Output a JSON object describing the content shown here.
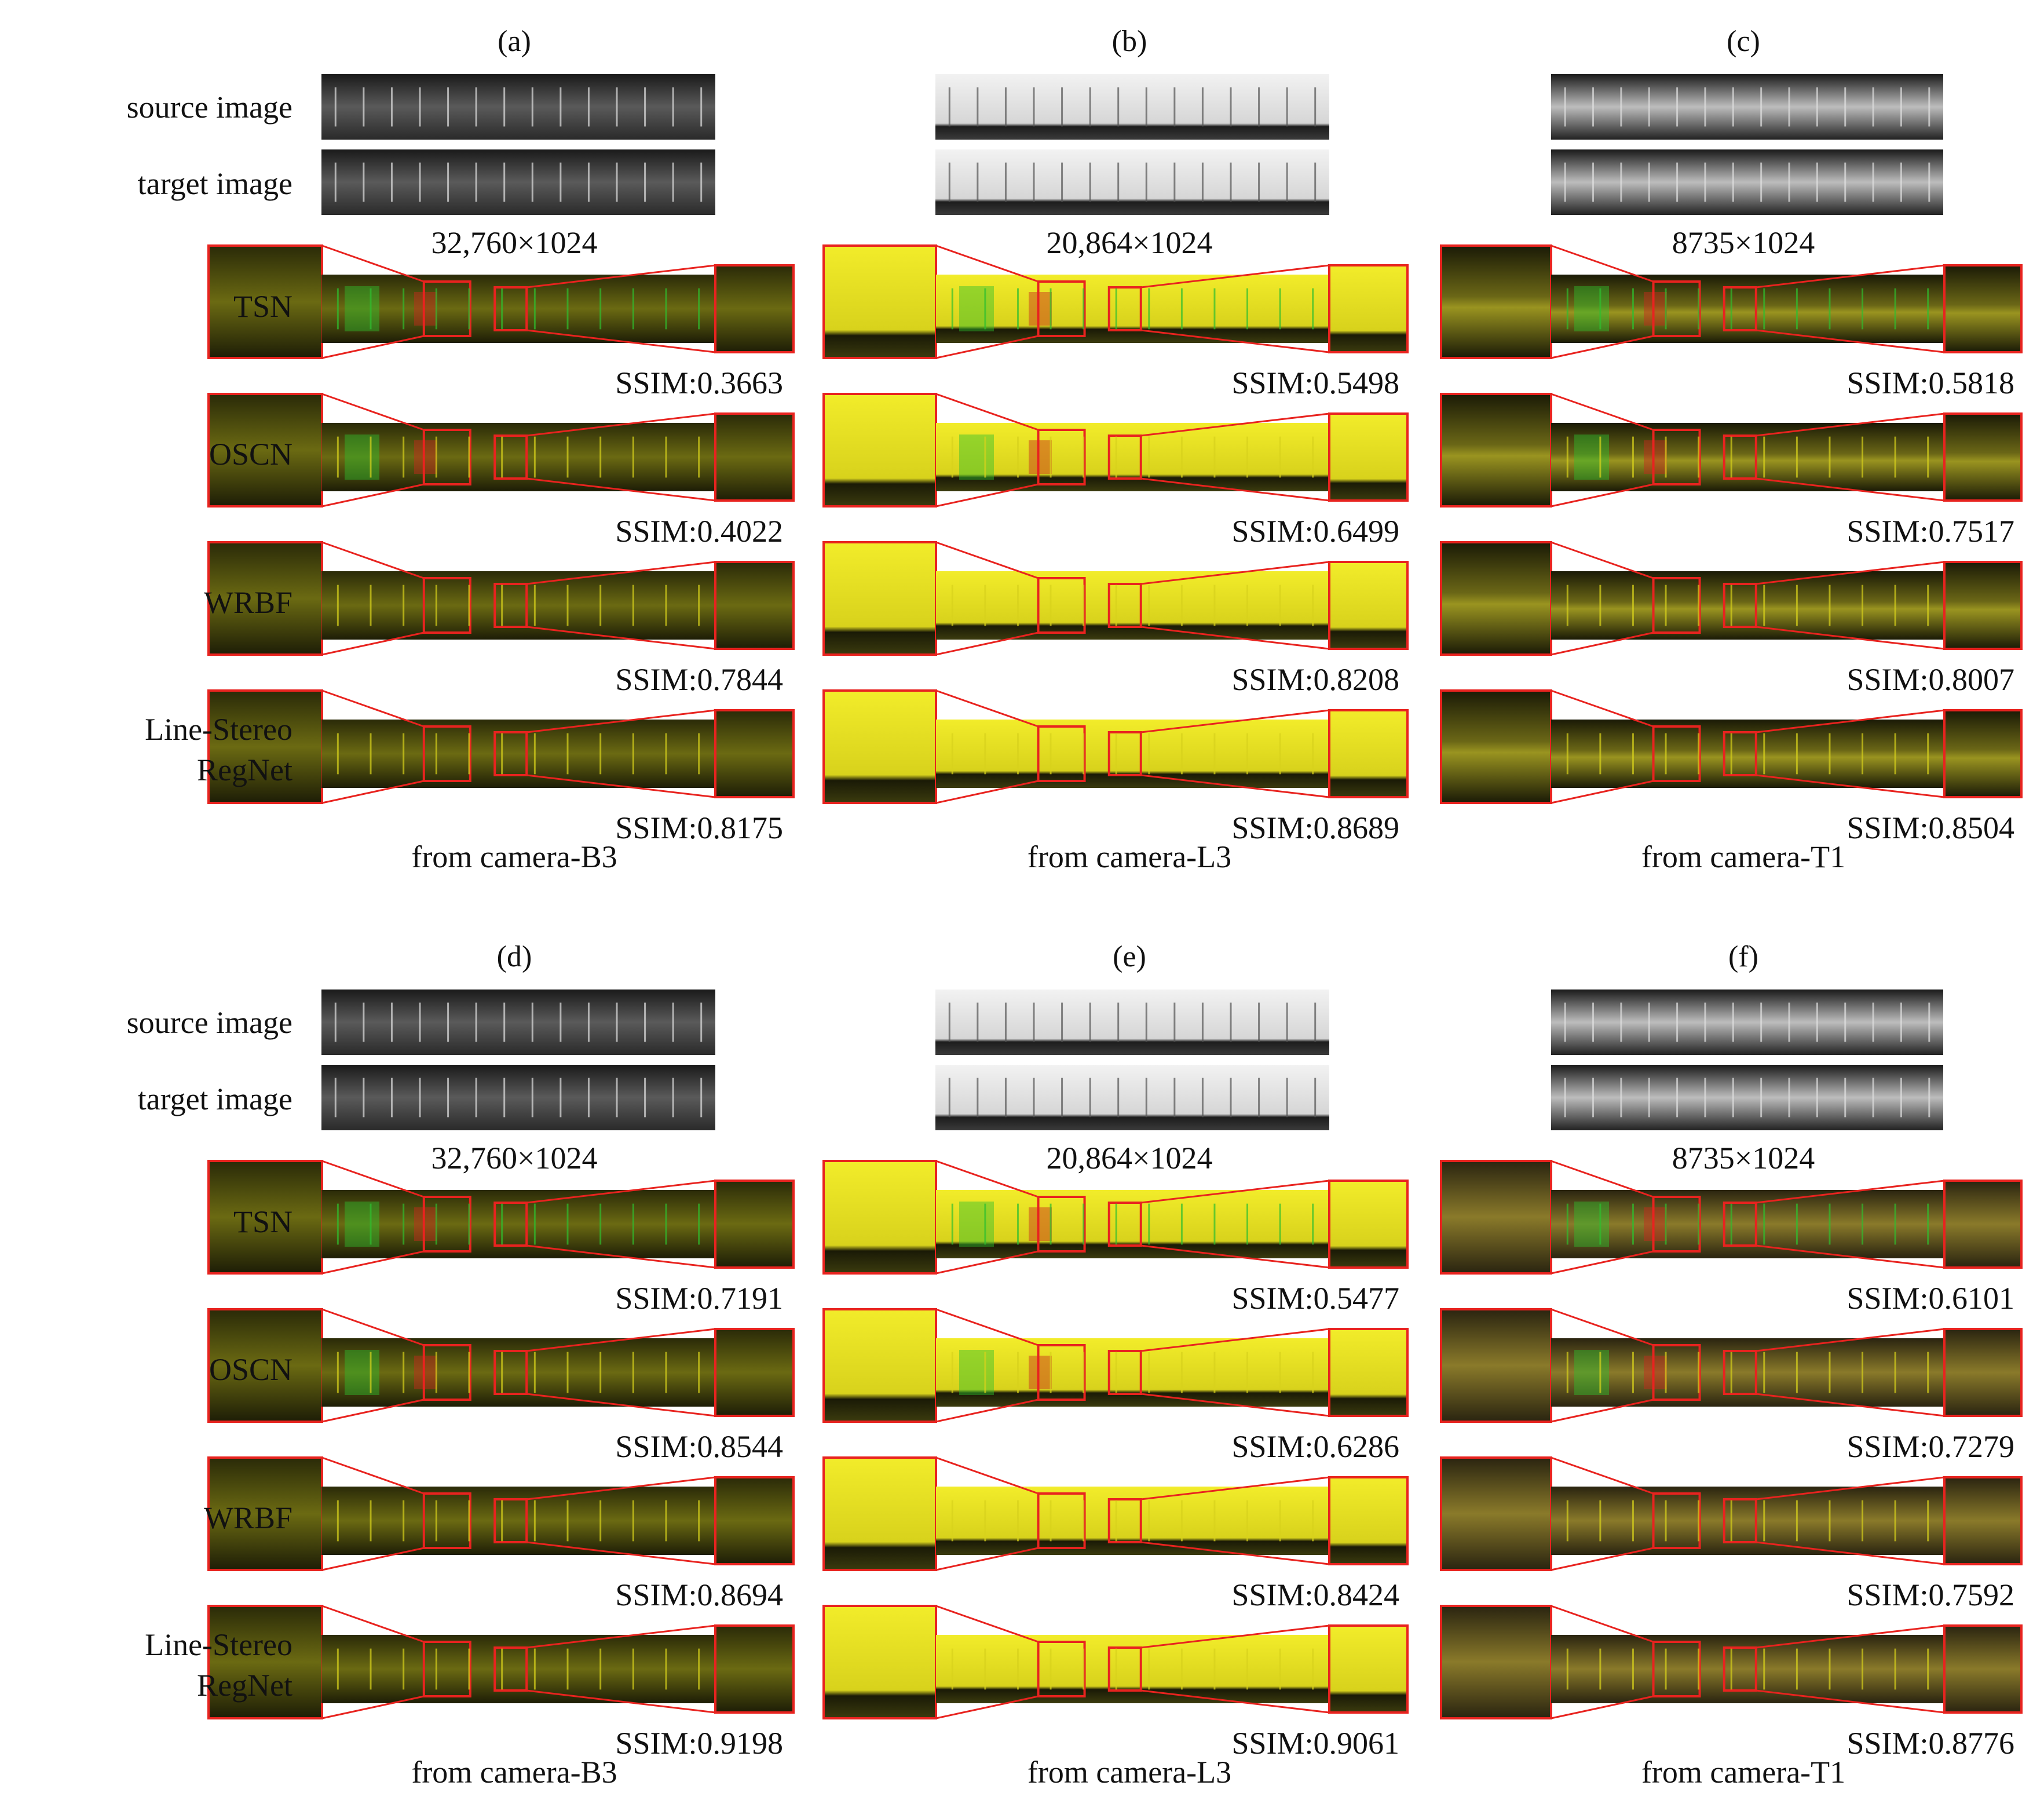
{
  "row_labels": {
    "source": "source image",
    "target": "target image",
    "tsn": "TSN",
    "oscn": "OSCN",
    "wrbf": "WRBF",
    "lsr_line1": "Line-Stereo",
    "lsr_line2": "RegNet"
  },
  "panels": [
    {
      "label": "(a)",
      "dims": "32,760×1024",
      "camera": "from camera-B3",
      "ssim": {
        "tsn": "SSIM:0.3663",
        "oscn": "SSIM:0.4022",
        "wrbf": "SSIM:0.7844",
        "lsr": "SSIM:0.8175"
      }
    },
    {
      "label": "(b)",
      "dims": "20,864×1024",
      "camera": "from camera-L3",
      "ssim": {
        "tsn": "SSIM:0.5498",
        "oscn": "SSIM:0.6499",
        "wrbf": "SSIM:0.8208",
        "lsr": "SSIM:0.8689"
      }
    },
    {
      "label": "(c)",
      "dims": "8735×1024",
      "camera": "from camera-T1",
      "ssim": {
        "tsn": "SSIM:0.5818",
        "oscn": "SSIM:0.7517",
        "wrbf": "SSIM:0.8007",
        "lsr": "SSIM:0.8504"
      }
    },
    {
      "label": "(d)",
      "dims": "32,760×1024",
      "camera": "from camera-B3",
      "ssim": {
        "tsn": "SSIM:0.7191",
        "oscn": "SSIM:0.8544",
        "wrbf": "SSIM:0.8694",
        "lsr": "SSIM:0.9198"
      }
    },
    {
      "label": "(e)",
      "dims": "20,864×1024",
      "camera": "from camera-L3",
      "ssim": {
        "tsn": "SSIM:0.5477",
        "oscn": "SSIM:0.6286",
        "wrbf": "SSIM:0.8424",
        "lsr": "SSIM:0.9061"
      }
    },
    {
      "label": "(f)",
      "dims": "8735×1024",
      "camera": "from camera-T1",
      "ssim": {
        "tsn": "SSIM:0.6101",
        "oscn": "SSIM:0.7279",
        "wrbf": "SSIM:0.7592",
        "lsr": "SSIM:0.8776"
      }
    }
  ],
  "colors": {
    "zoom_box": "#e8231f",
    "overlay_yellow": "#d8d21c",
    "overlay_green": "#2fbf2f",
    "overlay_red": "#c8281c",
    "grayscale_dark": "#2a2a2a",
    "grayscale_light": "#d8d8d8"
  }
}
